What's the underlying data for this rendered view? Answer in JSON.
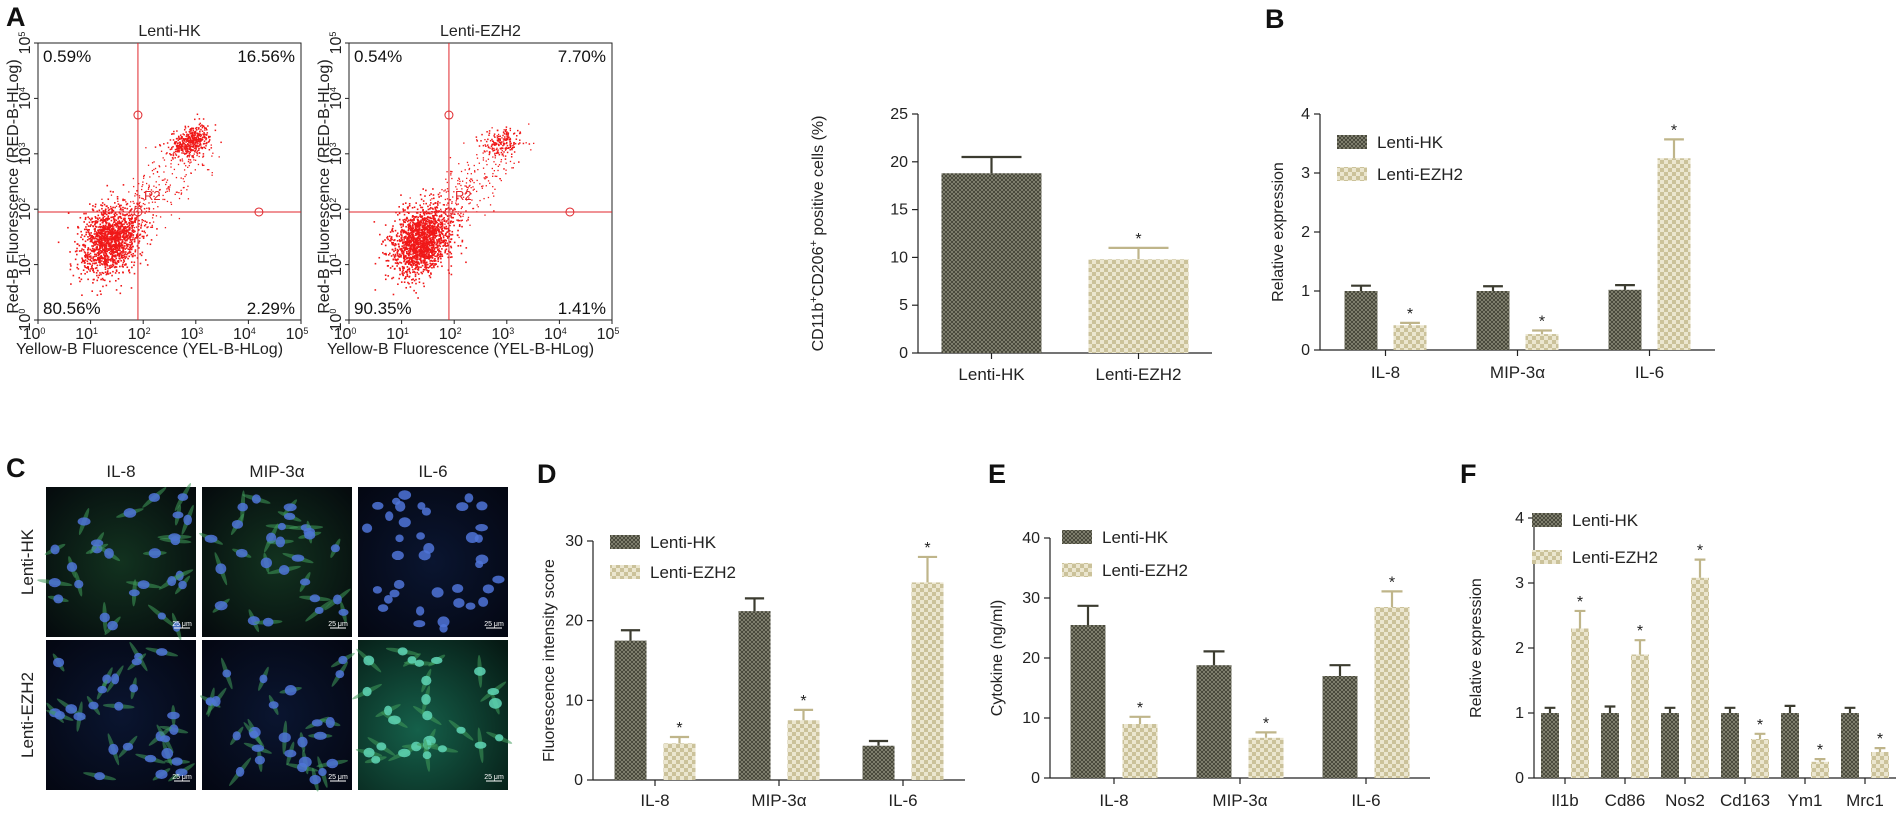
{
  "panels": {
    "A": "A",
    "B": "B",
    "C": "C",
    "D": "D",
    "E": "E",
    "F": "F"
  },
  "colors": {
    "dark": "#3c3c30",
    "dark_cross": "#8a8a78",
    "light": "#cbc29a",
    "light_cross": "#ebe6cf",
    "flow_dot": "#f01818",
    "flow_line": "#e0262b"
  },
  "flow_cytometry": {
    "x_axis_label": "Yellow-B Fluorescence (YEL-B-HLog)",
    "y_axis_label": "Red-B Fluorescence (RED-B-HLog)",
    "gate_label": "R2",
    "tick_base": "10",
    "tick_exps": [
      "0",
      "1",
      "2",
      "3",
      "4",
      "5"
    ],
    "plots": [
      {
        "title": "Lenti-HK",
        "top_left": "0.59%",
        "top_right": "16.56%",
        "bottom_left": "80.56%",
        "bottom_right": "2.29%"
      },
      {
        "title": "Lenti-EZH2",
        "top_left": "0.54%",
        "top_right": "7.70%",
        "bottom_left": "90.35%",
        "bottom_right": "1.41%"
      }
    ]
  },
  "chart_data": [
    {
      "id": "A_bar",
      "type": "bar",
      "categories": [
        "Lenti-HK",
        "Lenti-EZH2"
      ],
      "values": [
        18.8,
        9.8
      ],
      "errors": [
        1.7,
        1.2
      ],
      "significance": [
        "",
        "*"
      ],
      "ylabel_parts": [
        "CD11b",
        "+",
        "CD206",
        "+",
        " positive cells (%)"
      ],
      "ylim": [
        0,
        25
      ],
      "yticks": [
        "0",
        "5",
        "10",
        "15",
        "20",
        "25"
      ]
    },
    {
      "id": "B",
      "type": "bar",
      "categories": [
        "IL-8",
        "MIP-3α",
        "IL-6"
      ],
      "series": [
        {
          "name": "Lenti-HK",
          "values": [
            1.0,
            1.0,
            1.02
          ],
          "errors": [
            0.09,
            0.08,
            0.08
          ],
          "significance": [
            "",
            "",
            ""
          ]
        },
        {
          "name": "Lenti-EZH2",
          "values": [
            0.42,
            0.27,
            3.25
          ],
          "errors": [
            0.04,
            0.06,
            0.32
          ],
          "significance": [
            "*",
            "*",
            "*"
          ]
        }
      ],
      "ylabel": "Relative expression",
      "ylim": [
        0,
        4
      ],
      "yticks": [
        "0",
        "1",
        "2",
        "3",
        "4"
      ],
      "legend": "top-left"
    },
    {
      "id": "D",
      "type": "bar",
      "categories": [
        "IL-8",
        "MIP-3α",
        "IL-6"
      ],
      "series": [
        {
          "name": "Lenti-HK",
          "values": [
            17.5,
            21.2,
            4.3
          ],
          "errors": [
            1.3,
            1.6,
            0.6
          ],
          "significance": [
            "",
            "",
            ""
          ]
        },
        {
          "name": "Lenti-EZH2",
          "values": [
            4.6,
            7.5,
            24.8
          ],
          "errors": [
            0.8,
            1.3,
            3.2
          ],
          "significance": [
            "*",
            "*",
            "*"
          ]
        }
      ],
      "ylabel": "Fluorescence intensity score",
      "ylim": [
        0,
        30
      ],
      "yticks": [
        "0",
        "10",
        "20",
        "30"
      ],
      "legend": "top-left"
    },
    {
      "id": "E",
      "type": "bar",
      "categories": [
        "IL-8",
        "MIP-3α",
        "IL-6"
      ],
      "series": [
        {
          "name": "Lenti-HK",
          "values": [
            25.5,
            18.8,
            17.0
          ],
          "errors": [
            3.2,
            2.3,
            1.8
          ],
          "significance": [
            "",
            "",
            ""
          ]
        },
        {
          "name": "Lenti-EZH2",
          "values": [
            9.0,
            6.7,
            28.5
          ],
          "errors": [
            1.2,
            0.9,
            2.6
          ],
          "significance": [
            "*",
            "*",
            "*"
          ]
        }
      ],
      "ylabel": "Cytokine (ng/ml)",
      "ylim": [
        0,
        40
      ],
      "yticks": [
        "0",
        "10",
        "20",
        "30",
        "40"
      ],
      "legend": "top-left"
    },
    {
      "id": "F",
      "type": "bar",
      "categories": [
        "Il1b",
        "Cd86",
        "Nos2",
        "Cd163",
        "Ym1",
        "Mrc1"
      ],
      "series": [
        {
          "name": "Lenti-HK",
          "values": [
            1.0,
            1.0,
            1.0,
            1.0,
            1.0,
            1.0
          ],
          "errors": [
            0.08,
            0.1,
            0.08,
            0.08,
            0.11,
            0.08
          ],
          "significance": [
            "",
            "",
            "",
            "",
            "",
            ""
          ]
        },
        {
          "name": "Lenti-EZH2",
          "values": [
            2.3,
            1.9,
            3.08,
            0.6,
            0.25,
            0.4
          ],
          "errors": [
            0.27,
            0.22,
            0.28,
            0.08,
            0.04,
            0.06
          ],
          "significance": [
            "*",
            "*",
            "*",
            "*",
            "*",
            "*"
          ]
        }
      ],
      "ylabel": "Relative expression",
      "ylim": [
        0,
        4
      ],
      "yticks": [
        "0",
        "1",
        "2",
        "3",
        "4"
      ],
      "legend": "top-left"
    }
  ],
  "microscopy": {
    "columns": [
      "IL-8",
      "MIP-3α",
      "IL-6"
    ],
    "rows": [
      "Lenti-HK",
      "Lenti-EZH2"
    ],
    "scale_bar": "25 μm"
  }
}
